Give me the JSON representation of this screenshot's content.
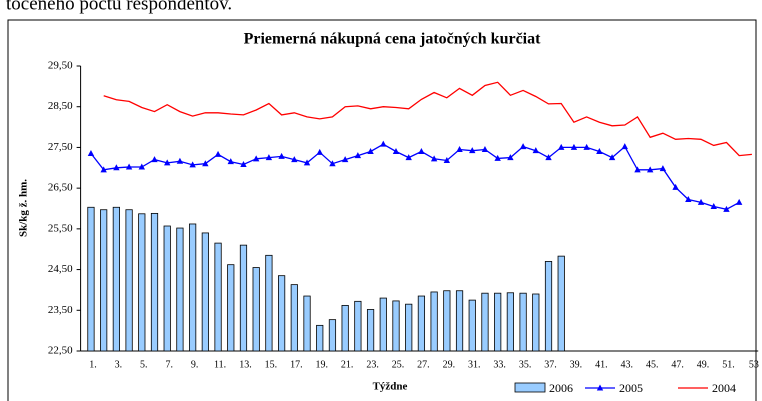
{
  "page_text": "točeného počtu respondentov.",
  "chart_data": {
    "type": "bar-line",
    "title": "Priemerná nákupná cena jatočných kurčiat",
    "y_label": "Sk/kg ž. hm.",
    "x_label": "Týždne",
    "categories": [
      "1.",
      null,
      "3.",
      null,
      "5.",
      null,
      "7.",
      null,
      "9.",
      null,
      "11.",
      null,
      "13.",
      null,
      "15.",
      null,
      "17.",
      null,
      "19.",
      null,
      "21.",
      null,
      "23.",
      null,
      "25.",
      null,
      "27.",
      null,
      "29.",
      null,
      "31.",
      null,
      "33.",
      null,
      "35.",
      null,
      "37.",
      null,
      "39.",
      null,
      "41.",
      null,
      "43.",
      null,
      "45.",
      null,
      "47.",
      null,
      "49.",
      null,
      "51.",
      null,
      "53"
    ],
    "ylim": [
      22.5,
      29.5
    ],
    "yticks": [
      {
        "value": 22.5,
        "label": "22,50"
      },
      {
        "value": 23.5,
        "label": "23,50"
      },
      {
        "value": 24.5,
        "label": "24,50"
      },
      {
        "value": 25.5,
        "label": "25,50"
      },
      {
        "value": 26.5,
        "label": "26,50"
      },
      {
        "value": 27.5,
        "label": "27,50"
      },
      {
        "value": 28.5,
        "label": "28,50"
      },
      {
        "value": 29.5,
        "label": "29,50"
      }
    ],
    "grid": false,
    "legend": "bottom-right",
    "series": [
      {
        "name": "2006",
        "kind": "bar",
        "color": "#99ccff",
        "values": [
          26.03,
          25.97,
          26.03,
          25.97,
          25.87,
          25.88,
          25.57,
          25.52,
          25.62,
          25.4,
          25.15,
          24.62,
          25.1,
          24.55,
          24.85,
          24.35,
          24.13,
          23.85,
          23.13,
          23.27,
          23.62,
          23.72,
          23.52,
          23.8,
          23.73,
          23.65,
          23.85,
          23.95,
          23.98,
          23.98,
          23.75,
          23.92,
          23.92,
          23.93,
          23.92,
          23.9,
          24.7,
          24.83,
          null,
          null,
          null,
          null,
          null,
          null,
          null,
          null,
          null,
          null,
          null,
          null,
          null,
          null,
          null
        ]
      },
      {
        "name": "2005",
        "kind": "line",
        "marker": "triangle",
        "color": "#0000ff",
        "values": [
          27.35,
          26.95,
          27.0,
          27.02,
          27.02,
          27.2,
          27.12,
          27.16,
          27.07,
          27.1,
          27.33,
          27.15,
          27.08,
          27.22,
          27.25,
          27.28,
          27.2,
          27.12,
          27.38,
          27.1,
          27.2,
          27.3,
          27.4,
          27.58,
          27.4,
          27.25,
          27.4,
          27.22,
          27.18,
          27.45,
          27.42,
          27.45,
          27.23,
          27.25,
          27.52,
          27.42,
          27.25,
          27.5,
          27.5,
          27.5,
          27.4,
          27.25,
          27.52,
          26.95,
          26.95,
          26.98,
          26.52,
          26.22,
          26.15,
          26.05,
          25.98,
          26.15,
          null
        ]
      },
      {
        "name": "2004",
        "kind": "line",
        "color": "#ff0000",
        "values": [
          null,
          28.77,
          28.67,
          28.63,
          28.48,
          28.38,
          28.55,
          28.38,
          28.27,
          28.35,
          28.35,
          28.32,
          28.3,
          28.42,
          28.58,
          28.3,
          28.35,
          28.25,
          28.2,
          28.25,
          28.5,
          28.52,
          28.45,
          28.5,
          28.48,
          28.45,
          28.68,
          28.85,
          28.72,
          28.95,
          28.78,
          29.02,
          29.1,
          28.78,
          28.9,
          28.75,
          28.57,
          28.58,
          28.12,
          28.25,
          28.12,
          28.03,
          28.05,
          28.25,
          27.75,
          27.85,
          27.7,
          27.72,
          27.7,
          27.55,
          27.62,
          27.3,
          27.33
        ]
      }
    ]
  }
}
